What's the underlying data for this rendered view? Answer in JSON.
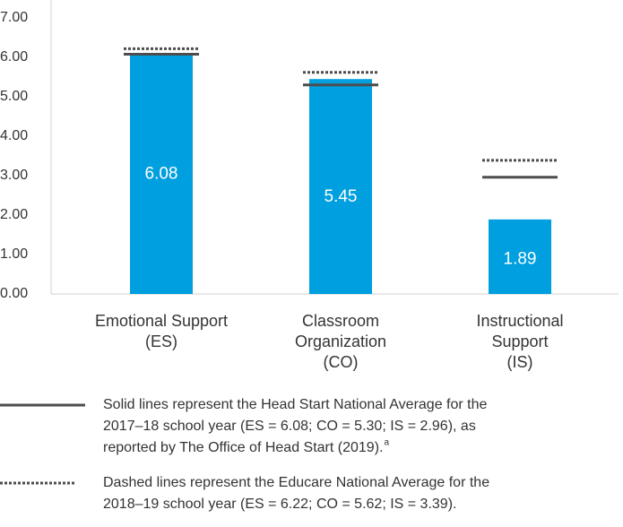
{
  "chart_data": {
    "type": "bar",
    "categories": [
      [
        "Emotional Support",
        "(ES)"
      ],
      [
        "Classroom",
        "Organization",
        "(CO)"
      ],
      [
        "Instructional",
        "Support",
        "(IS)"
      ]
    ],
    "values": [
      6.08,
      5.45,
      1.89
    ],
    "color": "#009fdf",
    "ylim": [
      0,
      7
    ],
    "yticks": [
      {
        "value": 0,
        "label": "0.00"
      },
      {
        "value": 1,
        "label": "1.00"
      },
      {
        "value": 2,
        "label": "2.00"
      },
      {
        "value": 3,
        "label": "3.00"
      },
      {
        "value": 4,
        "label": "4.00"
      },
      {
        "value": 5,
        "label": "5.00"
      },
      {
        "value": 6,
        "label": "6.00"
      },
      {
        "value": 7,
        "label": "7.00"
      }
    ],
    "grid": false,
    "reference_lines": [
      {
        "style": "solid",
        "color": "#4d4d4d",
        "values": [
          6.08,
          5.3,
          2.96
        ],
        "lines": [
          "Solid lines represent the Head Start National Average for the",
          "2017–18 school year (ES = 6.08; CO = 5.30; IS = 2.96), as",
          "reported by The Office of Head Start (2019)."
        ],
        "note_marker": "a"
      },
      {
        "style": "dashed",
        "color": "#4d4d4d",
        "values": [
          6.22,
          5.62,
          3.39
        ],
        "lines": [
          "Dashed lines represent the Educare National Average for the",
          "2018–19 school year (ES = 6.22; CO = 5.62; IS = 3.39)."
        ]
      }
    ]
  }
}
